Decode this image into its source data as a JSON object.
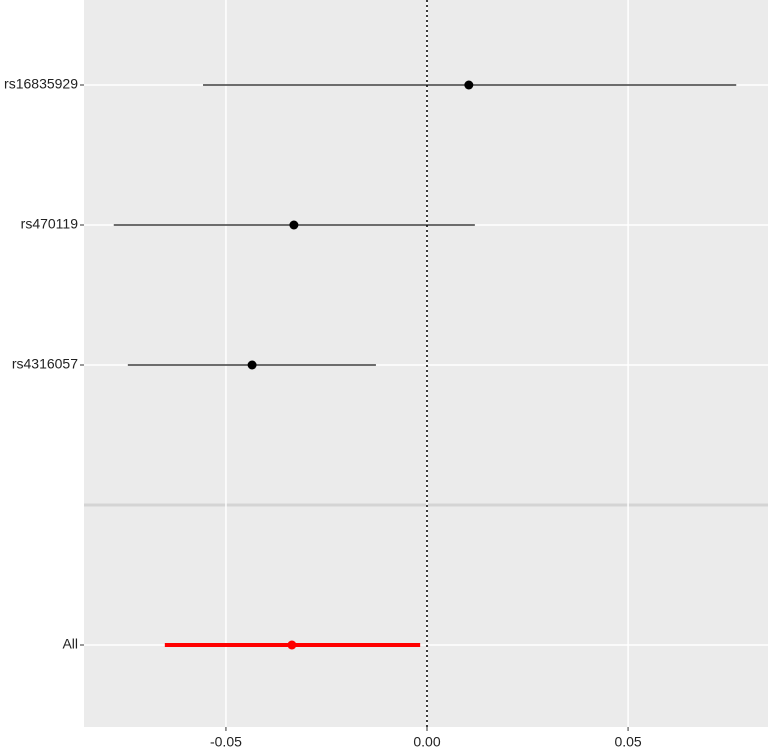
{
  "chart_data": {
    "type": "forest",
    "categories": [
      "rs16835929",
      "rs470119",
      "rs4316057",
      null,
      "All"
    ],
    "values": [
      0.0104,
      -0.0331,
      -0.0435,
      null,
      -0.0336
    ],
    "lower": [
      -0.0557,
      -0.0779,
      -0.0744,
      null,
      -0.0652
    ],
    "upper": [
      0.0769,
      0.0119,
      -0.0127,
      null,
      -0.0017
    ],
    "colors": [
      "#000000",
      "#000000",
      "#000000",
      null,
      "#ff0000"
    ],
    "xlim": [
      -0.0853,
      0.0848
    ],
    "xticks": [
      {
        "value": -0.05,
        "label": "-0.05"
      },
      {
        "value": 0,
        "label": "0.00"
      },
      {
        "value": 0.05,
        "label": "0.05"
      }
    ],
    "vline": 0,
    "grid": true
  }
}
